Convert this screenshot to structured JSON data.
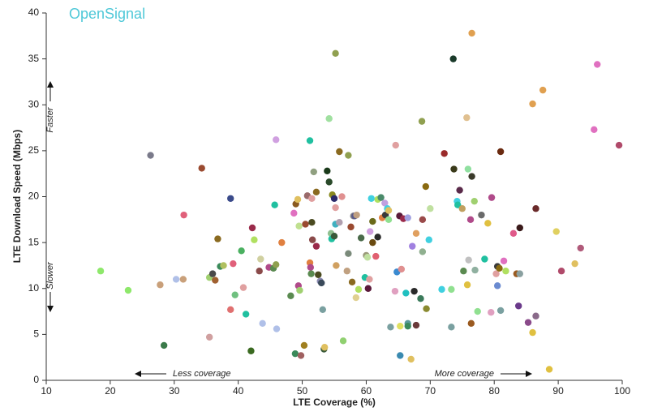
{
  "chart_data": {
    "type": "scatter",
    "xlabel": "LTE Coverage (%)",
    "ylabel": "LTE Download Speed (Mbps)",
    "watermark": "OpenSignal",
    "annotations": [
      "Faster",
      "Slower",
      "Less coverage",
      "More coverage"
    ],
    "xlim": [
      10,
      100
    ],
    "xticks": [
      10,
      20,
      30,
      40,
      50,
      60,
      70,
      80,
      90,
      100
    ],
    "ylim": [
      0,
      40
    ],
    "yticks": [
      0,
      5,
      10,
      15,
      20,
      25,
      30,
      35,
      40
    ],
    "x": [
      18.5,
      22.8,
      26.3,
      27.8,
      28.4,
      30.3,
      31.4,
      31.5,
      34.3,
      35.5,
      35.5,
      36.0,
      36.4,
      36.8,
      37.2,
      37.7,
      38.8,
      38.8,
      39.2,
      39.5,
      40.5,
      40.8,
      41.2,
      42.0,
      42.2,
      42.5,
      43.3,
      43.5,
      43.8,
      44.8,
      45.5,
      45.7,
      45.9,
      45.9,
      46.0,
      46.8,
      48.2,
      48.7,
      48.9,
      49.0,
      49.3,
      49.4,
      49.5,
      49.8,
      49.6,
      50.3,
      50.5,
      50.8,
      51.2,
      51.2,
      51.3,
      51.4,
      51.5,
      51.5,
      51.6,
      51.8,
      52.2,
      52.2,
      52.5,
      52.8,
      53.0,
      53.2,
      53.4,
      53.5,
      53.9,
      54.2,
      54.2,
      54.5,
      54.6,
      54.7,
      55.0,
      55.0,
      55.2,
      55.2,
      55.2,
      55.3,
      55.8,
      55.8,
      56.4,
      56.2,
      57.2,
      57.2,
      57.0,
      57.6,
      57.8,
      58.0,
      58.2,
      58.5,
      58.8,
      58.4,
      59.2,
      59.8,
      60.0,
      60.2,
      60.3,
      60.5,
      60.6,
      60.8,
      61.0,
      61.0,
      61.5,
      61.8,
      61.8,
      62.3,
      62.5,
      62.9,
      63.0,
      63.3,
      63.5,
      63.5,
      63.8,
      64.5,
      64.6,
      64.8,
      65.2,
      65.3,
      65.3,
      65.5,
      65.8,
      66.2,
      66.5,
      66.5,
      66.5,
      67.0,
      67.2,
      67.5,
      67.8,
      67.8,
      68.5,
      68.7,
      68.8,
      68.8,
      69.3,
      69.4,
      69.8,
      70.0,
      71.8,
      72.2,
      73.3,
      73.3,
      73.6,
      73.7,
      74.2,
      74.3,
      74.6,
      75.0,
      75.2,
      75.7,
      75.8,
      75.9,
      76.0,
      76.5,
      76.4,
      76.3,
      76.5,
      76.9,
      77.0,
      77.4,
      78.0,
      78.5,
      79.0,
      79.5,
      79.6,
      80.3,
      80.5,
      80.5,
      80.8,
      81.0,
      81.0,
      81.5,
      81.8,
      83.0,
      83.5,
      83.8,
      84.0,
      84.0,
      85.3,
      86.0,
      86.0,
      86.5,
      86.5,
      87.6,
      88.6,
      89.7,
      90.5,
      92.6,
      93.5,
      95.6,
      96.1,
      99.5
    ],
    "values": [
      11.9,
      9.8,
      24.5,
      10.4,
      3.8,
      11.0,
      11.0,
      18.0,
      23.1,
      4.7,
      11.2,
      11.6,
      10.9,
      15.4,
      12.4,
      12.5,
      19.8,
      7.7,
      12.7,
      9.3,
      14.1,
      10.1,
      7.2,
      3.2,
      16.6,
      15.3,
      11.9,
      13.2,
      6.2,
      12.3,
      12.2,
      19.1,
      26.2,
      12.6,
      5.6,
      15.0,
      9.2,
      18.2,
      2.9,
      19.2,
      19.7,
      10.3,
      16.8,
      2.7,
      9.8,
      3.8,
      17.0,
      20.1,
      26.1,
      12.8,
      12.3,
      11.6,
      19.8,
      17.2,
      15.3,
      22.7,
      20.5,
      14.6,
      11.5,
      10.8,
      10.6,
      7.7,
      3.4,
      3.6,
      22.8,
      28.5,
      21.6,
      16.0,
      15.4,
      20.2,
      19.8,
      15.7,
      35.6,
      17.0,
      18.8,
      12.5,
      24.9,
      17.2,
      4.3,
      20.0,
      24.5,
      13.8,
      11.9,
      16.7,
      10.7,
      17.9,
      17.9,
      18.0,
      9.9,
      9.0,
      15.5,
      11.2,
      13.6,
      13.4,
      10.0,
      11.0,
      16.2,
      19.8,
      17.3,
      15.0,
      13.5,
      19.7,
      15.6,
      19.9,
      17.7,
      19.3,
      18.0,
      18.7,
      18.5,
      17.5,
      5.8,
      9.7,
      25.6,
      11.8,
      17.9,
      2.7,
      5.9,
      12.1,
      17.6,
      9.5,
      17.7,
      6.2,
      5.9,
      2.3,
      14.6,
      9.7,
      16.0,
      6.0,
      8.9,
      28.2,
      14.0,
      17.5,
      21.1,
      7.8,
      15.3,
      18.7,
      9.9,
      24.7,
      5.8,
      9.9,
      35.0,
      23.0,
      19.5,
      19.1,
      20.7,
      18.7,
      11.9,
      28.6,
      10.4,
      23.0,
      13.1,
      37.8,
      6.2,
      17.5,
      22.2,
      19.5,
      12.0,
      7.5,
      18.0,
      13.2,
      17.1,
      7.4,
      19.9,
      11.6,
      10.3,
      12.4,
      12.2,
      24.9,
      7.6,
      13.0,
      11.9,
      16.0,
      11.6,
      8.1,
      16.6,
      11.6,
      6.3,
      5.2,
      30.1,
      18.7,
      7.0,
      31.6,
      1.2,
      16.2,
      11.9,
      12.7,
      14.4,
      27.3,
      34.4,
      25.6
    ],
    "colors": [
      "#8ee86b",
      "#8ee86b",
      "#7a7a8a",
      "#c9a07a",
      "#3b7a4a",
      "#b0c0e8",
      "#c9a07a",
      "#e0607a",
      "#9a4a30",
      "#d0a0a0",
      "#a0d070",
      "#4a4a4a",
      "#a06030",
      "#8a6a20",
      "#3a8a5a",
      "#b0c060",
      "#3a4a8a",
      "#e07070",
      "#e0607a",
      "#70c080",
      "#4ab060",
      "#e0a0a0",
      "#20c0a0",
      "#3a6a20",
      "#9a2a4a",
      "#b0e060",
      "#8a4a4a",
      "#d0d0a0",
      "#b0c0e8",
      "#b04a8a",
      "#5a8a50",
      "#20c0a0",
      "#d0a0e0",
      "#90a050",
      "#b0c0e8",
      "#e08040",
      "#5a8a50",
      "#e070c0",
      "#3a8a5a",
      "#8a5a20",
      "#e0c060",
      "#b04a8a",
      "#c0e090",
      "#a06060",
      "#a0d070",
      "#a08020",
      "#9a4a30",
      "#9a6a6a",
      "#20c0a0",
      "#e08040",
      "#b04a8a",
      "#5a8a50",
      "#e0a0a0",
      "#4a4a20",
      "#8a4a4a",
      "#90a080",
      "#8a6a20",
      "#9a2a4a",
      "#4a4a20",
      "#8a8ab0",
      "#3a4a5a",
      "#7aa0a0",
      "#3a5a3a",
      "#e0c060",
      "#1a3a1a",
      "#a0e0a0",
      "#2a4a2a",
      "#90c090",
      "#20c0a0",
      "#8a8a20",
      "#2a2a6a",
      "#3a5a3a",
      "#90a050",
      "#40b0c0",
      "#e0a0a0",
      "#d0a060",
      "#8a6a20",
      "#b0a0b0",
      "#90d070",
      "#e09090",
      "#90a050",
      "#7a8a7a",
      "#c0a080",
      "#9a4a30",
      "#8a6a20",
      "#8a8a8a",
      "#5a5a8a",
      "#c0a080",
      "#b0e060",
      "#e0d090",
      "#4a6a4a",
      "#20c0a0",
      "#9a9a7a",
      "#c0e0a0",
      "#5a1a3a",
      "#e0a0a0",
      "#d0a0e0",
      "#40d0e0",
      "#6a6a1a",
      "#6a4a10",
      "#e06070",
      "#b0e060",
      "#2a2a2a",
      "#4a8a6a",
      "#e08040",
      "#c0a0e0",
      "#3a3a3a",
      "#40d0e0",
      "#e0c060",
      "#90e090",
      "#7aa0a0",
      "#e0a0c0",
      "#e0a0a0",
      "#3a8ad0",
      "#5a1a3a",
      "#3a8ab0",
      "#e0e060",
      "#e09090",
      "#9a2a4a",
      "#20c0c0",
      "#a0a0e0",
      "#5a9a9a",
      "#3a8a5a",
      "#e0c060",
      "#a080e0",
      "#2a2a2a",
      "#e0a060",
      "#6a3a3a",
      "#3a7a5a",
      "#90a050",
      "#90b090",
      "#9a4a4a",
      "#8a6a10",
      "#8a8a30",
      "#40d0e0",
      "#c0e0a0",
      "#40d0e0",
      "#9a2a2a",
      "#7aa0a0",
      "#90e090",
      "#1a3a2a",
      "#3a3a1a",
      "#40d0e0",
      "#20c0a0",
      "#5a2a4a",
      "#c0a060",
      "#5a8a50",
      "#e0c090",
      "#e0c040",
      "#90e0a0",
      "#c0c0c0",
      "#e0a050",
      "#9a5a20",
      "#b04a8a",
      "#3a3a2a",
      "#a0d070",
      "#90b0a0",
      "#90e090",
      "#6a6a6a",
      "#20c0a0",
      "#e0c040",
      "#e0a0c0",
      "#b04a8a",
      "#e0a0a0",
      "#6a8ad0",
      "#3a3a3a",
      "#8a6a10",
      "#6a2a10",
      "#7aa0a0",
      "#e070c0",
      "#b0e060",
      "#e05a8a",
      "#9a5a20",
      "#6a3a8a",
      "#3a1a1a",
      "#8aa0a0",
      "#8a4a8a",
      "#e0c040",
      "#e0a050",
      "#6a2a2a",
      "#8a6a8a",
      "#e0a050",
      "#e0c040",
      "#e0d060",
      "#b04a6a",
      "#e0c060",
      "#b05a7a",
      "#e070c0",
      "#e070c0",
      "#b04a6a"
    ]
  }
}
